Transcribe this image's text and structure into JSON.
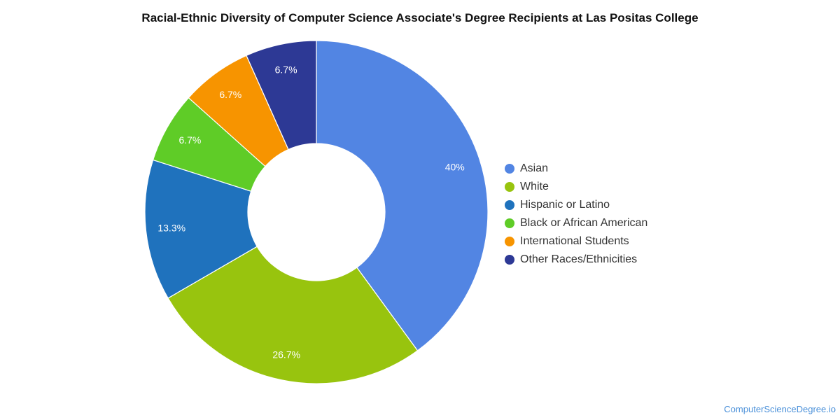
{
  "chart_data": {
    "type": "pie",
    "style": "donut",
    "title": "Racial-Ethnic Diversity of Computer Science Associate's Degree Recipients at Las Positas College",
    "legend_position": "right",
    "slices": [
      {
        "name": "Asian",
        "value": 40,
        "label": "40%",
        "color": "#5285e3"
      },
      {
        "name": "White",
        "value": 26.7,
        "label": "26.7%",
        "color": "#98c40e"
      },
      {
        "name": "Hispanic or Latino",
        "value": 13.3,
        "label": "13.3%",
        "color": "#1f72bd"
      },
      {
        "name": "Black or African American",
        "value": 6.7,
        "label": "6.7%",
        "color": "#5fcc27"
      },
      {
        "name": "International Students",
        "value": 6.7,
        "label": "6.7%",
        "color": "#f79400"
      },
      {
        "name": "Other Races/Ethnicities",
        "value": 6.7,
        "label": "6.7%",
        "color": "#2d3995"
      }
    ]
  },
  "watermark": "ComputerScienceDegree.io"
}
